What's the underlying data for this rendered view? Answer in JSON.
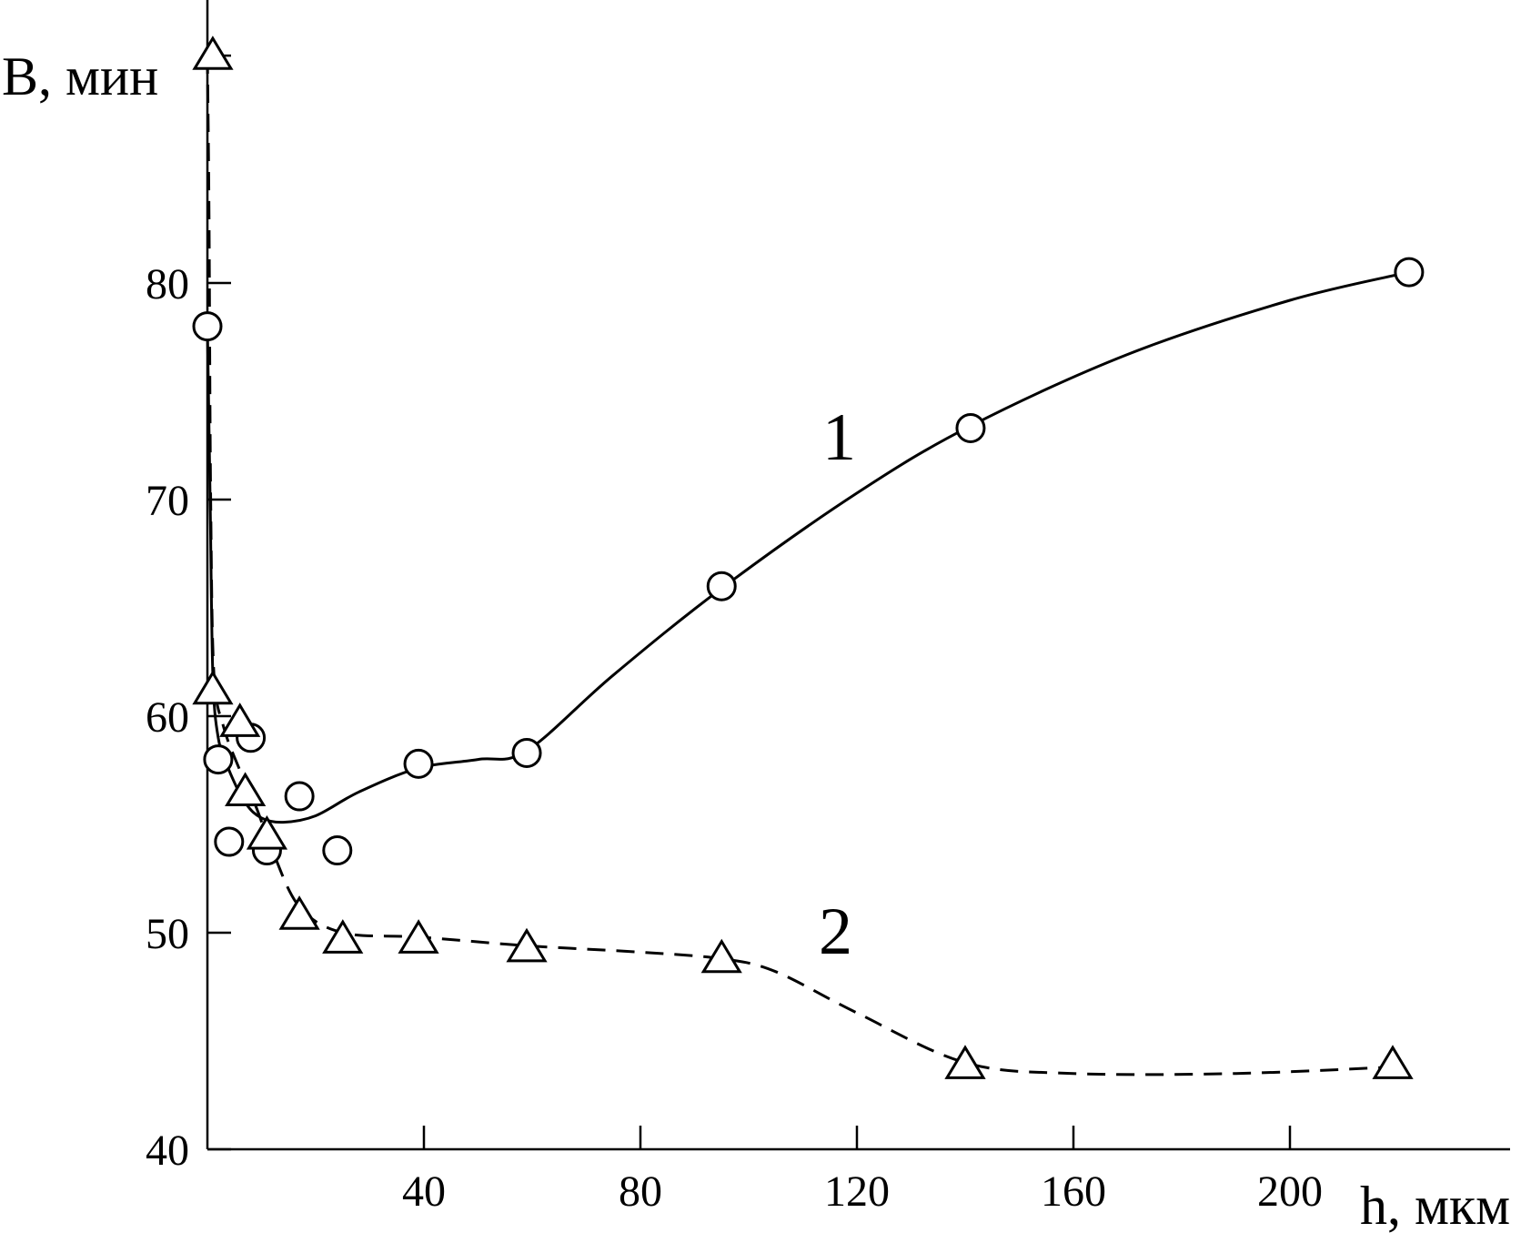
{
  "chart_data": {
    "type": "line",
    "xlabel": "h, мкм",
    "ylabel": "B, мин",
    "xlim": [
      0,
      240
    ],
    "ylim": [
      40,
      93
    ],
    "grid": false,
    "x_ticks": [
      40,
      80,
      120,
      160,
      200
    ],
    "x_tick_labels": [
      "40",
      "80",
      "120",
      "160",
      "200"
    ],
    "y_ticks": [
      40,
      50,
      60,
      70,
      80
    ],
    "y_tick_labels": [
      "40",
      "50",
      "60",
      "70",
      "80"
    ],
    "series": [
      {
        "name": "1",
        "marker": "circle",
        "line_style": "solid",
        "points": [
          {
            "x": 0,
            "y": 78
          },
          {
            "x": 2,
            "y": 58
          },
          {
            "x": 4,
            "y": 54.2
          },
          {
            "x": 8,
            "y": 59
          },
          {
            "x": 11,
            "y": 53.8
          },
          {
            "x": 17,
            "y": 56.3
          },
          {
            "x": 24,
            "y": 53.8
          },
          {
            "x": 39,
            "y": 57.8
          },
          {
            "x": 59,
            "y": 58.3
          },
          {
            "x": 95,
            "y": 66
          },
          {
            "x": 141,
            "y": 73.3
          },
          {
            "x": 222,
            "y": 80.5
          }
        ],
        "curve": [
          {
            "x": 0,
            "y": 78
          },
          {
            "x": 0.5,
            "y": 70
          },
          {
            "x": 1,
            "y": 62
          },
          {
            "x": 2,
            "y": 59
          },
          {
            "x": 4,
            "y": 57.5
          },
          {
            "x": 7,
            "y": 56
          },
          {
            "x": 10,
            "y": 55.3
          },
          {
            "x": 14,
            "y": 55.1
          },
          {
            "x": 20,
            "y": 55.4
          },
          {
            "x": 28,
            "y": 56.5
          },
          {
            "x": 39,
            "y": 57.6
          },
          {
            "x": 50,
            "y": 58
          },
          {
            "x": 59,
            "y": 58.4
          },
          {
            "x": 75,
            "y": 61.9
          },
          {
            "x": 95,
            "y": 65.9
          },
          {
            "x": 120,
            "y": 70.3
          },
          {
            "x": 141,
            "y": 73.4
          },
          {
            "x": 170,
            "y": 76.7
          },
          {
            "x": 200,
            "y": 79.2
          },
          {
            "x": 222,
            "y": 80.5
          }
        ]
      },
      {
        "name": "2",
        "marker": "triangle",
        "line_style": "dashed",
        "points": [
          {
            "x": 1,
            "y": 90.5
          },
          {
            "x": 1,
            "y": 61.2
          },
          {
            "x": 6,
            "y": 59.7
          },
          {
            "x": 7,
            "y": 56.5
          },
          {
            "x": 11,
            "y": 54.5
          },
          {
            "x": 17,
            "y": 50.8
          },
          {
            "x": 25,
            "y": 49.7
          },
          {
            "x": 39,
            "y": 49.7
          },
          {
            "x": 59,
            "y": 49.3
          },
          {
            "x": 95,
            "y": 48.8
          },
          {
            "x": 140,
            "y": 43.9
          },
          {
            "x": 219,
            "y": 43.9
          }
        ],
        "curve": [
          {
            "x": 0,
            "y": 90.5
          },
          {
            "x": 0.3,
            "y": 83
          },
          {
            "x": 0.6,
            "y": 70
          },
          {
            "x": 1.2,
            "y": 62
          },
          {
            "x": 3,
            "y": 59.5
          },
          {
            "x": 6,
            "y": 57.5
          },
          {
            "x": 9,
            "y": 55.8
          },
          {
            "x": 12,
            "y": 53.8
          },
          {
            "x": 17,
            "y": 51.2
          },
          {
            "x": 25,
            "y": 50
          },
          {
            "x": 39,
            "y": 49.8
          },
          {
            "x": 59,
            "y": 49.4
          },
          {
            "x": 80,
            "y": 49.1
          },
          {
            "x": 95,
            "y": 48.8
          },
          {
            "x": 105,
            "y": 48.2
          },
          {
            "x": 120,
            "y": 46.3
          },
          {
            "x": 140,
            "y": 44
          },
          {
            "x": 160,
            "y": 43.5
          },
          {
            "x": 190,
            "y": 43.5
          },
          {
            "x": 219,
            "y": 43.8
          }
        ]
      }
    ]
  }
}
